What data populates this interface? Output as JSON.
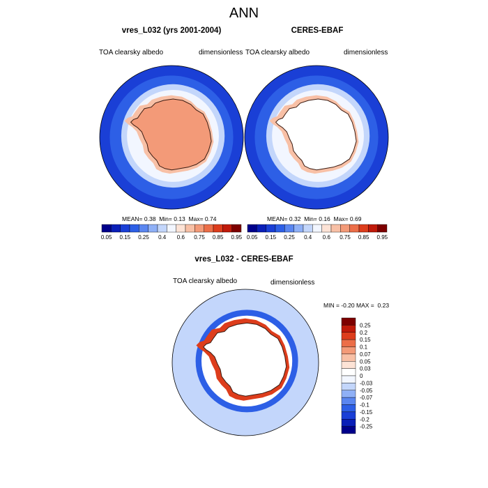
{
  "page": {
    "title": "ANN"
  },
  "colors": {
    "abs_palette": [
      "#00008b",
      "#0a1fb8",
      "#1a3fd6",
      "#2d5fe6",
      "#5a86f0",
      "#8fb0f6",
      "#c3d6fb",
      "#f2f6ff",
      "#fde3d6",
      "#f8c0a6",
      "#f39a78",
      "#ec6e48",
      "#dd3d1c",
      "#c01a0a",
      "#7d0000"
    ],
    "diff_palette": [
      "#7d0000",
      "#c01a0a",
      "#dd3d1c",
      "#ec6e48",
      "#f39a78",
      "#f8c0a6",
      "#fde3d6",
      "#ffffff",
      "#f2f6ff",
      "#c3d6fb",
      "#8fb0f6",
      "#5a86f0",
      "#2d5fe6",
      "#1a3fd6",
      "#0a1fb8",
      "#00008b"
    ],
    "land_outline": "#3a1a10"
  },
  "chart_data": [
    {
      "type": "heatmap",
      "projection": "south-polar-stereographic",
      "title": "vres_L032 (yrs 2001-2004)",
      "left_label": "TOA clearsky albedo",
      "right_label": "dimensionless",
      "stats": {
        "mean_label": "MEAN=",
        "mean": "0.38",
        "min_label": "Min=",
        "min": "0.13",
        "max_label": "Max=",
        "max": "0.74"
      },
      "zones": [
        {
          "name": "outer-ocean",
          "value": 0.15
        },
        {
          "name": "mid-ocean",
          "value": 0.25
        },
        {
          "name": "sea-ice-edge",
          "value": 0.4
        },
        {
          "name": "sea-ice",
          "value": 0.5
        },
        {
          "name": "antarctic-interior",
          "value": 0.7
        },
        {
          "name": "coastal-ice",
          "value": 0.6
        }
      ],
      "colorbar_ticks": [
        "0.05",
        "0.15",
        "0.25",
        "0.4",
        "0.6",
        "0.75",
        "0.85",
        "0.95"
      ]
    },
    {
      "type": "heatmap",
      "projection": "south-polar-stereographic",
      "title": "CERES-EBAF",
      "left_label": "TOA clearsky albedo",
      "right_label": "dimensionless",
      "stats": {
        "mean_label": "MEAN=",
        "mean": "0.32",
        "min_label": "Min=",
        "min": "0.16",
        "max_label": "Max=",
        "max": "0.69"
      },
      "zones": [
        {
          "name": "outer-ocean",
          "value": 0.15
        },
        {
          "name": "mid-ocean",
          "value": 0.25
        },
        {
          "name": "sea-ice-edge",
          "value": 0.4
        },
        {
          "name": "sea-ice",
          "value": 0.5
        },
        {
          "name": "antarctic-interior",
          "value": null
        },
        {
          "name": "coastal-ice",
          "value": 0.6
        }
      ],
      "colorbar_ticks": [
        "0.05",
        "0.15",
        "0.25",
        "0.4",
        "0.6",
        "0.75",
        "0.85",
        "0.95"
      ]
    },
    {
      "type": "heatmap",
      "projection": "south-polar-stereographic",
      "title": "vres_L032 - CERES-EBAF",
      "left_label": "TOA clearsky albedo",
      "right_label": "dimensionless",
      "stats": {
        "min_label": "MIN =",
        "min": "-0.20",
        "max_label": "MAX =",
        "max": "0.23"
      },
      "zones": [
        {
          "name": "outer-ocean",
          "value": -0.05
        },
        {
          "name": "mid-ocean",
          "value": -0.07
        },
        {
          "name": "sea-ice-edge",
          "value": -0.15
        },
        {
          "name": "coastal-ring",
          "value": 0.2
        },
        {
          "name": "antarctic-interior",
          "value": null
        }
      ],
      "colorbar_ticks": [
        "0.25",
        "0.2",
        "0.15",
        "0.1",
        "0.07",
        "0.05",
        "0.03",
        "0",
        "-0.03",
        "-0.05",
        "-0.07",
        "-0.1",
        "-0.15",
        "-0.2",
        "-0.25"
      ]
    }
  ]
}
